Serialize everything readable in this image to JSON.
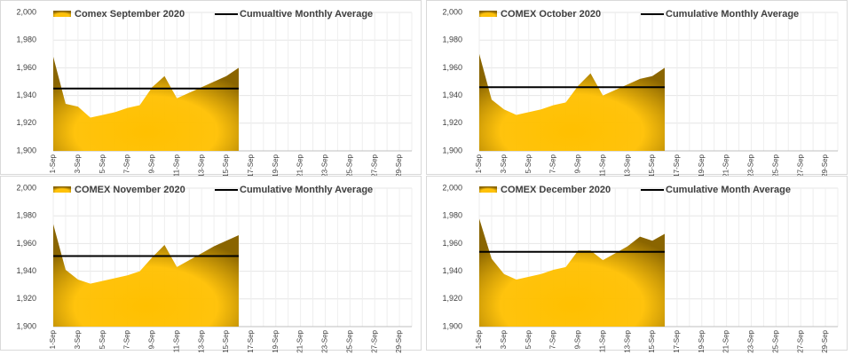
{
  "chart_data": [
    {
      "type": "area",
      "categories": [
        "1-Sep",
        null,
        "3-Sep",
        null,
        "5-Sep",
        null,
        "7-Sep",
        null,
        "9-Sep",
        null,
        "11-Sep",
        null,
        "13-Sep",
        null,
        "15-Sep",
        null,
        "17-Sep",
        null,
        "19-Sep",
        null,
        "21-Sep",
        null,
        "23-Sep",
        null,
        "25-Sep",
        null,
        "27-Sep",
        null,
        "29-Sep",
        null
      ],
      "series": [
        {
          "name": "Comex September 2020",
          "color": "#ffc000",
          "values": [
            1968,
            1934,
            1932,
            1924,
            1926,
            1928,
            1931,
            1933,
            1946,
            1954,
            1938,
            1942,
            1946,
            1950,
            1954,
            1960,
            null,
            null,
            null,
            null,
            null,
            null,
            null,
            null,
            null,
            null,
            null,
            null,
            null,
            null
          ]
        },
        {
          "name": "Cumualtive Monthly Average",
          "color": "#000000",
          "values": [
            1945,
            1945,
            1945,
            1945,
            1945,
            1945,
            1945,
            1945,
            1945,
            1945,
            1945,
            1945,
            1945,
            1945,
            1945,
            1945,
            null,
            null,
            null,
            null,
            null,
            null,
            null,
            null,
            null,
            null,
            null,
            null,
            null,
            null
          ]
        }
      ],
      "ylim": [
        1900,
        2000
      ],
      "yticks": [
        {
          "value": 1900,
          "label": "1,900"
        },
        {
          "value": 1920,
          "label": "1,920"
        },
        {
          "value": 1940,
          "label": "1,940"
        },
        {
          "value": 1960,
          "label": "1,960"
        },
        {
          "value": 1980,
          "label": "1,980"
        },
        {
          "value": 2000,
          "label": "2,000"
        }
      ],
      "grid": true,
      "legend": "top"
    },
    {
      "type": "area",
      "categories": [
        "1-Sep",
        null,
        "3-Sep",
        null,
        "5-Sep",
        null,
        "7-Sep",
        null,
        "9-Sep",
        null,
        "11-Sep",
        null,
        "13-Sep",
        null,
        "15-Sep",
        null,
        "17-Sep",
        null,
        "19-Sep",
        null,
        "21-Sep",
        null,
        "23-Sep",
        null,
        "25-Sep",
        null,
        "27-Sep",
        null,
        "29-Sep",
        null
      ],
      "series": [
        {
          "name": "COMEX October 2020",
          "color": "#ffc000",
          "values": [
            1970,
            1937,
            1930,
            1926,
            1928,
            1930,
            1933,
            1935,
            1947,
            1956,
            1940,
            1944,
            1948,
            1952,
            1954,
            1960,
            null,
            null,
            null,
            null,
            null,
            null,
            null,
            null,
            null,
            null,
            null,
            null,
            null,
            null
          ]
        },
        {
          "name": "Cumulative Monthly Average",
          "color": "#000000",
          "values": [
            1946,
            1946,
            1946,
            1946,
            1946,
            1946,
            1946,
            1946,
            1946,
            1946,
            1946,
            1946,
            1946,
            1946,
            1946,
            1946,
            null,
            null,
            null,
            null,
            null,
            null,
            null,
            null,
            null,
            null,
            null,
            null,
            null,
            null
          ]
        }
      ],
      "ylim": [
        1900,
        2000
      ],
      "yticks": [
        {
          "value": 1900,
          "label": "1,900"
        },
        {
          "value": 1920,
          "label": "1,920"
        },
        {
          "value": 1940,
          "label": "1,940"
        },
        {
          "value": 1960,
          "label": "1,960"
        },
        {
          "value": 1980,
          "label": "1,980"
        },
        {
          "value": 2000,
          "label": "2,000"
        }
      ],
      "grid": true,
      "legend": "top"
    },
    {
      "type": "area",
      "categories": [
        "1-Sep",
        null,
        "3-Sep",
        null,
        "5-Sep",
        null,
        "7-Sep",
        null,
        "9-Sep",
        null,
        "11-Sep",
        null,
        "13-Sep",
        null,
        "15-Sep",
        null,
        "17-Sep",
        null,
        "19-Sep",
        null,
        "21-Sep",
        null,
        "23-Sep",
        null,
        "25-Sep",
        null,
        "27-Sep",
        null,
        "29-Sep",
        null
      ],
      "series": [
        {
          "name": "COMEX November 2020",
          "color": "#ffc000",
          "values": [
            1974,
            1941,
            1934,
            1931,
            1933,
            1935,
            1937,
            1940,
            1950,
            1959,
            1943,
            1948,
            1953,
            1958,
            1962,
            1966,
            null,
            null,
            null,
            null,
            null,
            null,
            null,
            null,
            null,
            null,
            null,
            null,
            null,
            null
          ]
        },
        {
          "name": "Cumulative Monthly Average",
          "color": "#000000",
          "values": [
            1951,
            1951,
            1951,
            1951,
            1951,
            1951,
            1951,
            1951,
            1951,
            1951,
            1951,
            1951,
            1951,
            1951,
            1951,
            1951,
            null,
            null,
            null,
            null,
            null,
            null,
            null,
            null,
            null,
            null,
            null,
            null,
            null,
            null
          ]
        }
      ],
      "ylim": [
        1900,
        2000
      ],
      "yticks": [
        {
          "value": 1900,
          "label": "1,900"
        },
        {
          "value": 1920,
          "label": "1,920"
        },
        {
          "value": 1940,
          "label": "1,940"
        },
        {
          "value": 1960,
          "label": "1,960"
        },
        {
          "value": 1980,
          "label": "1,980"
        },
        {
          "value": 2000,
          "label": "2,000"
        }
      ],
      "grid": true,
      "legend": "top"
    },
    {
      "type": "area",
      "categories": [
        "1-Sep",
        null,
        "3-Sep",
        null,
        "5-Sep",
        null,
        "7-Sep",
        null,
        "9-Sep",
        null,
        "11-Sep",
        null,
        "13-Sep",
        null,
        "15-Sep",
        null,
        "17-Sep",
        null,
        "19-Sep",
        null,
        "21-Sep",
        null,
        "23-Sep",
        null,
        "25-Sep",
        null,
        "27-Sep",
        null,
        "29-Sep",
        null
      ],
      "series": [
        {
          "name": "COMEX December 2020",
          "color": "#ffc000",
          "values": [
            1978,
            1949,
            1938,
            1934,
            1936,
            1938,
            1941,
            1943,
            1955,
            1955,
            1948,
            1953,
            1958,
            1965,
            1962,
            1967,
            null,
            null,
            null,
            null,
            null,
            null,
            null,
            null,
            null,
            null,
            null,
            null,
            null,
            null
          ]
        },
        {
          "name": "Cumulative Month Average",
          "color": "#000000",
          "values": [
            1954,
            1954,
            1954,
            1954,
            1954,
            1954,
            1954,
            1954,
            1954,
            1954,
            1954,
            1954,
            1954,
            1954,
            1954,
            1954,
            null,
            null,
            null,
            null,
            null,
            null,
            null,
            null,
            null,
            null,
            null,
            null,
            null,
            null
          ]
        }
      ],
      "ylim": [
        1900,
        2000
      ],
      "yticks": [
        {
          "value": 1900,
          "label": "1,900"
        },
        {
          "value": 1920,
          "label": "1,920"
        },
        {
          "value": 1940,
          "label": "1,940"
        },
        {
          "value": 1960,
          "label": "1,960"
        },
        {
          "value": 1980,
          "label": "1,980"
        },
        {
          "value": 2000,
          "label": "2,000"
        }
      ],
      "grid": true,
      "legend": "top"
    }
  ]
}
